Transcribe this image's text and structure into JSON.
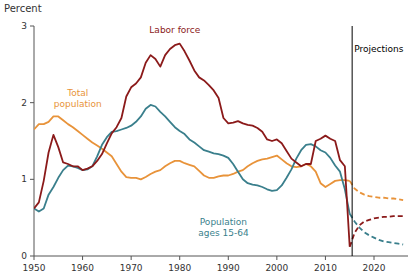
{
  "chart_data": {
    "type": "line",
    "y_label": "Percent",
    "xlim": [
      1950,
      2027
    ],
    "ylim": [
      0,
      3
    ],
    "xticks": [
      1950,
      1960,
      1970,
      1980,
      1990,
      2000,
      2010,
      2020
    ],
    "yticks": [
      0,
      1,
      2,
      3
    ],
    "grid": false,
    "vline": 2015.5,
    "series": [
      {
        "color": "#e8933a",
        "line_style": "solid",
        "x": [
          1950,
          1951,
          1952,
          1953,
          1954,
          1955,
          1956,
          1957,
          1958,
          1959,
          1960,
          1961,
          1962,
          1963,
          1964,
          1965,
          1966,
          1967,
          1968,
          1969,
          1970,
          1971,
          1972,
          1973,
          1974,
          1975,
          1976,
          1977,
          1978,
          1979,
          1980,
          1981,
          1982,
          1983,
          1984,
          1985,
          1986,
          1987,
          1988,
          1989,
          1990,
          1991,
          1992,
          1993,
          1994,
          1995,
          1996,
          1997,
          1998,
          1999,
          2000,
          2001,
          2002,
          2003,
          2004,
          2005,
          2006,
          2007,
          2008,
          2009,
          2010,
          2011,
          2012,
          2013,
          2014,
          2015
        ],
        "values": [
          1.65,
          1.72,
          1.72,
          1.75,
          1.82,
          1.82,
          1.77,
          1.72,
          1.68,
          1.63,
          1.58,
          1.53,
          1.48,
          1.44,
          1.4,
          1.35,
          1.3,
          1.2,
          1.1,
          1.03,
          1.02,
          1.02,
          1.0,
          1.03,
          1.07,
          1.1,
          1.12,
          1.17,
          1.21,
          1.24,
          1.24,
          1.21,
          1.19,
          1.17,
          1.11,
          1.05,
          1.02,
          1.02,
          1.04,
          1.05,
          1.05,
          1.07,
          1.1,
          1.12,
          1.17,
          1.21,
          1.24,
          1.26,
          1.27,
          1.29,
          1.31,
          1.26,
          1.21,
          1.17,
          1.16,
          1.17,
          1.2,
          1.17,
          1.1,
          0.95,
          0.9,
          0.94,
          0.98,
          0.99,
          0.99,
          0.98
        ]
      },
      {
        "color": "#3a7f8c",
        "line_style": "solid",
        "x": [
          1950,
          1951,
          1952,
          1953,
          1954,
          1955,
          1956,
          1957,
          1958,
          1959,
          1960,
          1961,
          1962,
          1963,
          1964,
          1965,
          1966,
          1967,
          1968,
          1969,
          1970,
          1971,
          1972,
          1973,
          1974,
          1975,
          1976,
          1977,
          1978,
          1979,
          1980,
          1981,
          1982,
          1983,
          1984,
          1985,
          1986,
          1987,
          1988,
          1989,
          1990,
          1991,
          1992,
          1993,
          1994,
          1995,
          1996,
          1997,
          1998,
          1999,
          2000,
          2001,
          2002,
          2003,
          2004,
          2005,
          2006,
          2007,
          2008,
          2009,
          2010,
          2011,
          2012,
          2013,
          2014,
          2015
        ],
        "values": [
          0.62,
          0.58,
          0.62,
          0.8,
          0.9,
          1.02,
          1.12,
          1.18,
          1.17,
          1.15,
          1.12,
          1.13,
          1.17,
          1.3,
          1.45,
          1.55,
          1.62,
          1.63,
          1.65,
          1.67,
          1.7,
          1.75,
          1.82,
          1.92,
          1.97,
          1.95,
          1.88,
          1.82,
          1.75,
          1.68,
          1.63,
          1.59,
          1.52,
          1.48,
          1.43,
          1.38,
          1.36,
          1.34,
          1.33,
          1.31,
          1.28,
          1.2,
          1.1,
          1.0,
          0.95,
          0.93,
          0.92,
          0.9,
          0.87,
          0.85,
          0.86,
          0.92,
          1.02,
          1.13,
          1.27,
          1.38,
          1.45,
          1.46,
          1.43,
          1.38,
          1.35,
          1.28,
          1.18,
          1.1,
          0.87,
          0.55
        ]
      },
      {
        "color": "#8b1a1a",
        "line_style": "solid",
        "x": [
          1950,
          1951,
          1952,
          1953,
          1954,
          1955,
          1956,
          1957,
          1958,
          1959,
          1960,
          1961,
          1962,
          1963,
          1964,
          1965,
          1966,
          1967,
          1968,
          1969,
          1970,
          1971,
          1972,
          1973,
          1974,
          1975,
          1976,
          1977,
          1978,
          1979,
          1980,
          1981,
          1982,
          1983,
          1984,
          1985,
          1986,
          1987,
          1988,
          1989,
          1990,
          1991,
          1992,
          1993,
          1994,
          1995,
          1996,
          1997,
          1998,
          1999,
          2000,
          2001,
          2002,
          2003,
          2004,
          2005,
          2006,
          2007,
          2008,
          2009,
          2010,
          2011,
          2012,
          2013,
          2014,
          2015
        ],
        "values": [
          0.62,
          0.7,
          0.98,
          1.35,
          1.58,
          1.42,
          1.22,
          1.2,
          1.17,
          1.17,
          1.12,
          1.14,
          1.17,
          1.24,
          1.33,
          1.47,
          1.6,
          1.68,
          1.8,
          2.08,
          2.2,
          2.25,
          2.33,
          2.52,
          2.62,
          2.57,
          2.47,
          2.62,
          2.7,
          2.75,
          2.77,
          2.67,
          2.55,
          2.42,
          2.33,
          2.29,
          2.23,
          2.16,
          2.06,
          1.8,
          1.73,
          1.74,
          1.76,
          1.73,
          1.71,
          1.7,
          1.67,
          1.62,
          1.52,
          1.5,
          1.52,
          1.47,
          1.37,
          1.27,
          1.22,
          1.17,
          1.2,
          1.2,
          1.5,
          1.53,
          1.57,
          1.53,
          1.5,
          1.25,
          1.17,
          0.12
        ]
      },
      {
        "color": "#e8933a",
        "line_style": "dashed",
        "x": [
          2015,
          2016,
          2017,
          2018,
          2019,
          2020,
          2021,
          2022,
          2023,
          2024,
          2025,
          2026
        ],
        "values": [
          0.98,
          0.88,
          0.83,
          0.8,
          0.78,
          0.77,
          0.76,
          0.76,
          0.75,
          0.75,
          0.74,
          0.73
        ]
      },
      {
        "color": "#3a7f8c",
        "line_style": "dashed",
        "x": [
          2015,
          2016,
          2017,
          2018,
          2019,
          2020,
          2021,
          2022,
          2023,
          2024,
          2025,
          2026
        ],
        "values": [
          0.55,
          0.45,
          0.37,
          0.31,
          0.27,
          0.24,
          0.21,
          0.19,
          0.18,
          0.17,
          0.16,
          0.15
        ]
      },
      {
        "color": "#8b1a1a",
        "line_style": "dashed",
        "x": [
          2015,
          2016,
          2017,
          2018,
          2019,
          2020,
          2021,
          2022,
          2023,
          2024,
          2025,
          2026
        ],
        "values": [
          0.12,
          0.3,
          0.4,
          0.45,
          0.47,
          0.49,
          0.5,
          0.51,
          0.51,
          0.52,
          0.52,
          0.52
        ]
      }
    ],
    "annotations": [
      {
        "text": "Labor force",
        "x": 1979,
        "y": 2.88,
        "color": "#8b1a1a",
        "anchor": "bottom"
      },
      {
        "text": "Total\npopulation",
        "x": 1959,
        "y": 2.05,
        "color": "#e8933a",
        "anchor": "middle"
      },
      {
        "text": "Population\nages 15-64",
        "x": 1989,
        "y": 0.52,
        "color": "#3a7f8c",
        "anchor": "top"
      },
      {
        "text": "Projections",
        "x": 2021,
        "y": 2.78,
        "color": "#000000",
        "anchor": "top"
      }
    ]
  }
}
